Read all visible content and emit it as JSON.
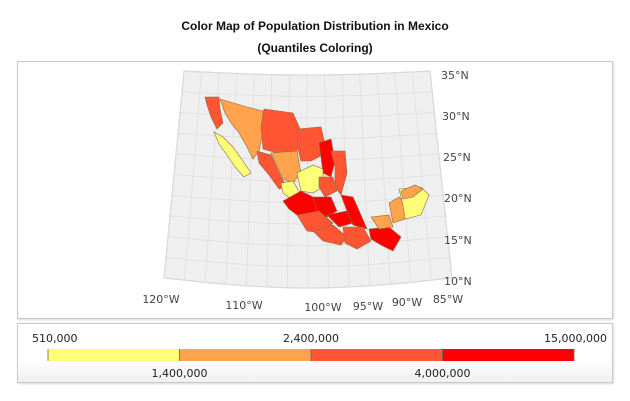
{
  "chart": {
    "title": "Color Map of Population Distribution in Mexico",
    "subtitle": "(Quantiles Coloring)"
  },
  "chart_data": {
    "type": "choropleth-map",
    "region": "Mexico",
    "coloring": "quantiles",
    "grid": true,
    "legend_placement": "bottom",
    "lon_ticks": [
      "120°W",
      "110°W",
      "100°W",
      "95°W",
      "90°W",
      "85°W"
    ],
    "lon_values": [
      -120,
      -110,
      -100,
      -95,
      -90,
      -85
    ],
    "lat_ticks": [
      "35°N",
      "30°N",
      "25°N",
      "20°N",
      "15°N",
      "10°N"
    ],
    "lat_values": [
      35,
      30,
      25,
      20,
      15,
      10
    ],
    "lon_range": [
      -120,
      -85
    ],
    "lat_range": [
      10,
      35
    ],
    "legend": {
      "boundaries": [
        510000,
        1400000,
        2400000,
        4000000,
        15000000
      ],
      "top_labels": [
        "510,000",
        "2,400,000",
        "15,000,000"
      ],
      "bottom_labels": [
        "1,400,000",
        "4,000,000"
      ],
      "colors": [
        "#ffff77",
        "#ffa34d",
        "#ff5533",
        "#ff0000"
      ]
    }
  }
}
